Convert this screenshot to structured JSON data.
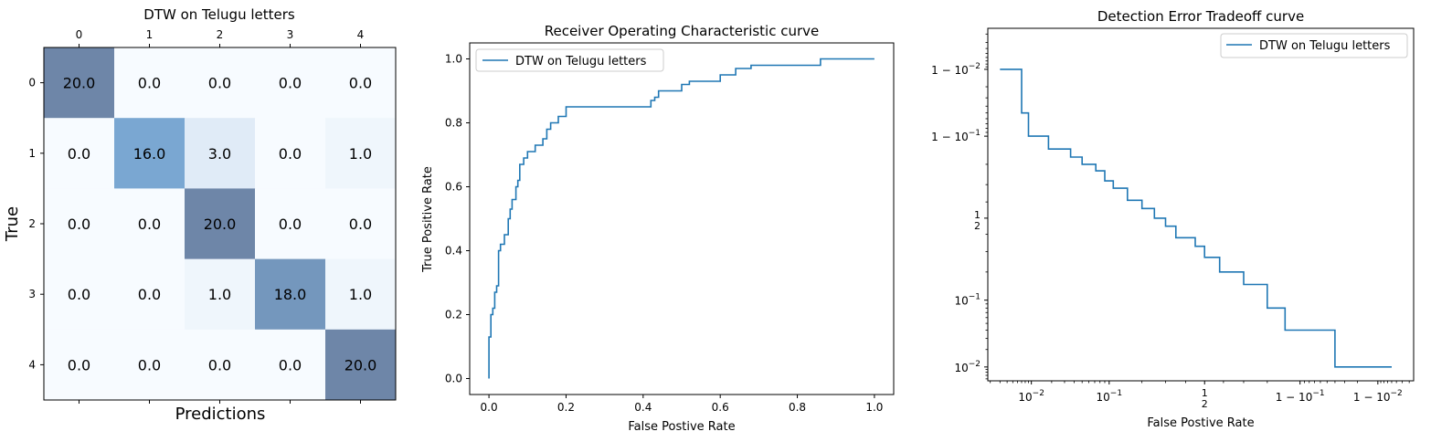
{
  "chart_data": [
    {
      "type": "heatmap",
      "title": "DTW on Telugu letters",
      "xlabel": "Predictions",
      "ylabel": "True",
      "x_ticks": [
        "0",
        "1",
        "2",
        "3",
        "4"
      ],
      "y_ticks": [
        "0",
        "1",
        "2",
        "3",
        "4"
      ],
      "cell_labels": [
        [
          "20.0",
          "0.0",
          "0.0",
          "0.0",
          "0.0"
        ],
        [
          "0.0",
          "16.0",
          "3.0",
          "0.0",
          "1.0"
        ],
        [
          "0.0",
          "0.0",
          "20.0",
          "0.0",
          "0.0"
        ],
        [
          "0.0",
          "0.0",
          "1.0",
          "18.0",
          "1.0"
        ],
        [
          "0.0",
          "0.0",
          "0.0",
          "0.0",
          "20.0"
        ]
      ],
      "values": [
        [
          20,
          0,
          0,
          0,
          0
        ],
        [
          0,
          16,
          3,
          0,
          1
        ],
        [
          0,
          0,
          20,
          0,
          0
        ],
        [
          0,
          0,
          1,
          18,
          1
        ],
        [
          0,
          0,
          0,
          0,
          20
        ]
      ],
      "colors": {
        "high": "#6e86a8",
        "mid": "#7aa7d2",
        "low": "#f7fbff"
      }
    },
    {
      "type": "line",
      "title": "Receiver Operating Characteristic curve",
      "xlabel": "False Postive Rate",
      "ylabel": "True Positive Rate",
      "xlim": [
        -0.05,
        1.05
      ],
      "ylim": [
        -0.05,
        1.05
      ],
      "x_ticks": [
        "0.0",
        "0.2",
        "0.4",
        "0.6",
        "0.8",
        "1.0"
      ],
      "y_ticks": [
        "0.0",
        "0.2",
        "0.4",
        "0.6",
        "0.8",
        "1.0"
      ],
      "legend": "top-left",
      "series": [
        {
          "name": "DTW on Telugu letters",
          "color": "#1f77b4",
          "x": [
            0,
            0,
            0.005,
            0.005,
            0.01,
            0.01,
            0.015,
            0.015,
            0.02,
            0.02,
            0.025,
            0.025,
            0.03,
            0.03,
            0.04,
            0.04,
            0.05,
            0.05,
            0.055,
            0.055,
            0.06,
            0.06,
            0.07,
            0.07,
            0.075,
            0.075,
            0.08,
            0.08,
            0.09,
            0.09,
            0.1,
            0.1,
            0.12,
            0.12,
            0.14,
            0.14,
            0.15,
            0.15,
            0.16,
            0.16,
            0.18,
            0.18,
            0.2,
            0.2,
            0.42,
            0.42,
            0.43,
            0.43,
            0.44,
            0.44,
            0.46,
            0.46,
            0.5,
            0.5,
            0.52,
            0.52,
            0.6,
            0.6,
            0.64,
            0.64,
            0.68,
            0.68,
            0.86,
            0.86,
            1.0
          ],
          "y": [
            0,
            0.13,
            0.13,
            0.2,
            0.2,
            0.22,
            0.22,
            0.27,
            0.27,
            0.29,
            0.29,
            0.4,
            0.4,
            0.42,
            0.42,
            0.45,
            0.45,
            0.5,
            0.5,
            0.53,
            0.53,
            0.56,
            0.56,
            0.6,
            0.6,
            0.62,
            0.62,
            0.67,
            0.67,
            0.69,
            0.69,
            0.71,
            0.71,
            0.73,
            0.73,
            0.75,
            0.75,
            0.78,
            0.78,
            0.8,
            0.8,
            0.82,
            0.82,
            0.85,
            0.85,
            0.87,
            0.87,
            0.88,
            0.88,
            0.9,
            0.9,
            0.9,
            0.9,
            0.92,
            0.92,
            0.93,
            0.93,
            0.95,
            0.95,
            0.97,
            0.97,
            0.98,
            0.98,
            1.0,
            1.0
          ]
        }
      ]
    },
    {
      "type": "line",
      "title": "Detection Error Tradeoff curve",
      "xlabel": "False Postive Rate",
      "ylabel": "",
      "xscale": "normal-deviate",
      "yscale": "normal-deviate",
      "x_ticks": [
        "10^-2",
        "10^-1",
        "1/2",
        "1-10^-1",
        "1-10^-2"
      ],
      "y_ticks": [
        "1-10^-2",
        "1-10^-1",
        "1/2",
        "10^-1",
        "10^-2"
      ],
      "legend": "top-right",
      "series": [
        {
          "name": "DTW on Telugu letters",
          "color": "#1f77b4",
          "x": [
            0.003,
            0.007,
            0.007,
            0.009,
            0.009,
            0.018,
            0.018,
            0.036,
            0.036,
            0.05,
            0.05,
            0.072,
            0.072,
            0.09,
            0.09,
            0.11,
            0.11,
            0.15,
            0.15,
            0.2,
            0.2,
            0.25,
            0.25,
            0.3,
            0.3,
            0.35,
            0.35,
            0.45,
            0.45,
            0.5,
            0.5,
            0.58,
            0.58,
            0.7,
            0.7,
            0.8,
            0.8,
            0.86,
            0.86,
            0.96,
            0.96,
            0.994
          ],
          "y": [
            0.99,
            0.99,
            0.95,
            0.95,
            0.9,
            0.9,
            0.86,
            0.86,
            0.83,
            0.83,
            0.8,
            0.8,
            0.77,
            0.77,
            0.72,
            0.72,
            0.68,
            0.68,
            0.61,
            0.61,
            0.56,
            0.56,
            0.5,
            0.5,
            0.45,
            0.45,
            0.38,
            0.38,
            0.33,
            0.33,
            0.27,
            0.27,
            0.2,
            0.2,
            0.15,
            0.15,
            0.08,
            0.08,
            0.04,
            0.04,
            0.01,
            0.01
          ]
        }
      ]
    }
  ]
}
